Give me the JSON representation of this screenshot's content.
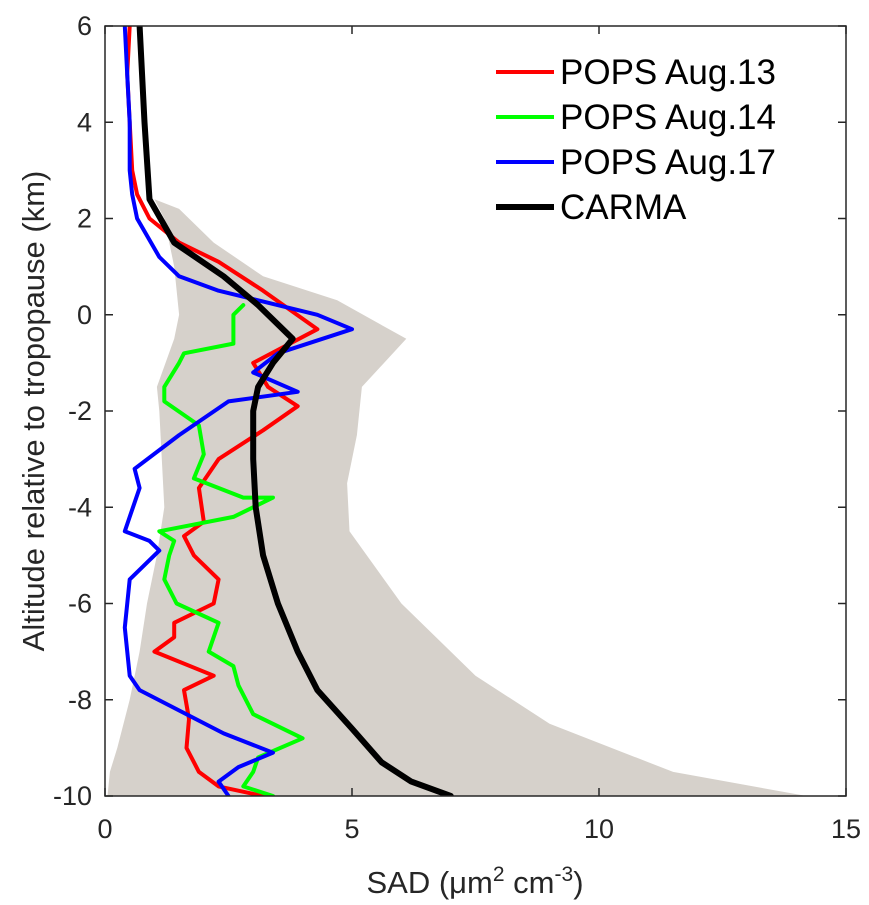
{
  "chart_data": {
    "type": "line",
    "xlabel": {
      "prefix": "SAD (",
      "mu": "μ",
      "unit1": "m",
      "sup1": "2",
      "unit2": " cm",
      "sup2": "-3",
      "suffix": ")"
    },
    "ylabel": "Altitude relative to tropopause (km)",
    "xlim": [
      0,
      15
    ],
    "ylim": [
      -10,
      6
    ],
    "xticks": [
      "0",
      "5",
      "10",
      "15"
    ],
    "yticks": [
      "-10",
      "-8",
      "-6",
      "-4",
      "-2",
      "0",
      "2",
      "4",
      "6"
    ],
    "legend_position": "top-right",
    "range_band": {
      "color": "#d6d1cb",
      "low": [
        [
          0.05,
          -10
        ],
        [
          0.1,
          -9.5
        ],
        [
          0.25,
          -9
        ],
        [
          0.5,
          -8
        ],
        [
          0.7,
          -7
        ],
        [
          0.85,
          -6
        ],
        [
          1.05,
          -5
        ],
        [
          1.2,
          -4
        ],
        [
          1.15,
          -3
        ],
        [
          1.1,
          -2
        ],
        [
          1.05,
          -1.5
        ],
        [
          1.4,
          -0.5
        ],
        [
          1.5,
          0
        ],
        [
          1.4,
          1
        ],
        [
          1.2,
          2
        ],
        [
          1.0,
          2.4
        ]
      ],
      "high": [
        [
          1.0,
          2.4
        ],
        [
          1.5,
          2.2
        ],
        [
          2.2,
          1.5
        ],
        [
          3.2,
          0.8
        ],
        [
          4.7,
          0.3
        ],
        [
          6.1,
          -0.5
        ],
        [
          5.2,
          -1.5
        ],
        [
          5.1,
          -2.5
        ],
        [
          4.9,
          -3.5
        ],
        [
          4.95,
          -4.5
        ],
        [
          6.0,
          -6
        ],
        [
          7.5,
          -7.5
        ],
        [
          9.0,
          -8.5
        ],
        [
          11.5,
          -9.5
        ],
        [
          14.2,
          -10
        ]
      ]
    },
    "series": [
      {
        "name": "POPS Aug.13",
        "color": "#ff0000",
        "points": [
          [
            0.5,
            6
          ],
          [
            0.45,
            5
          ],
          [
            0.5,
            4
          ],
          [
            0.55,
            3
          ],
          [
            0.65,
            2.5
          ],
          [
            0.9,
            2
          ],
          [
            1.5,
            1.5
          ],
          [
            2.3,
            1.1
          ],
          [
            3.2,
            0.5
          ],
          [
            4.3,
            -0.3
          ],
          [
            3.0,
            -1.0
          ],
          [
            3.3,
            -1.5
          ],
          [
            3.9,
            -1.9
          ],
          [
            3.2,
            -2.4
          ],
          [
            2.3,
            -3.0
          ],
          [
            1.9,
            -3.6
          ],
          [
            2.0,
            -4.3
          ],
          [
            1.6,
            -4.6
          ],
          [
            1.8,
            -5.0
          ],
          [
            2.3,
            -5.5
          ],
          [
            2.2,
            -6.0
          ],
          [
            1.4,
            -6.4
          ],
          [
            1.4,
            -6.7
          ],
          [
            1.0,
            -7.0
          ],
          [
            2.2,
            -7.5
          ],
          [
            1.6,
            -7.8
          ],
          [
            1.7,
            -8.4
          ],
          [
            1.65,
            -9.0
          ],
          [
            1.9,
            -9.5
          ],
          [
            2.3,
            -9.8
          ],
          [
            3.2,
            -10.0
          ]
        ]
      },
      {
        "name": "POPS Aug.14",
        "color": "#00ff00",
        "points": [
          [
            2.8,
            0.2
          ],
          [
            2.6,
            0
          ],
          [
            2.6,
            -0.6
          ],
          [
            1.6,
            -0.8
          ],
          [
            1.5,
            -1.0
          ],
          [
            1.2,
            -1.5
          ],
          [
            1.2,
            -1.8
          ],
          [
            1.9,
            -2.3
          ],
          [
            2.0,
            -2.9
          ],
          [
            1.8,
            -3.4
          ],
          [
            2.8,
            -3.8
          ],
          [
            3.4,
            -3.8
          ],
          [
            2.6,
            -4.2
          ],
          [
            1.1,
            -4.5
          ],
          [
            1.4,
            -4.7
          ],
          [
            1.3,
            -5.0
          ],
          [
            1.2,
            -5.5
          ],
          [
            1.45,
            -6.0
          ],
          [
            2.3,
            -6.4
          ],
          [
            2.1,
            -7.0
          ],
          [
            2.6,
            -7.3
          ],
          [
            2.7,
            -7.7
          ],
          [
            3.0,
            -8.3
          ],
          [
            4.0,
            -8.8
          ],
          [
            3.1,
            -9.2
          ],
          [
            3.0,
            -9.5
          ],
          [
            2.8,
            -9.8
          ],
          [
            3.4,
            -10.0
          ]
        ]
      },
      {
        "name": "POPS Aug.17",
        "color": "#0000ff",
        "points": [
          [
            0.4,
            6
          ],
          [
            0.45,
            5
          ],
          [
            0.5,
            4
          ],
          [
            0.5,
            3
          ],
          [
            0.55,
            2.5
          ],
          [
            0.65,
            2
          ],
          [
            1.1,
            1.2
          ],
          [
            1.5,
            0.8
          ],
          [
            2.3,
            0.5
          ],
          [
            3.1,
            0.3
          ],
          [
            4.3,
            0
          ],
          [
            5.0,
            -0.3
          ],
          [
            3.5,
            -0.8
          ],
          [
            3.0,
            -1.2
          ],
          [
            3.9,
            -1.6
          ],
          [
            2.5,
            -1.8
          ],
          [
            1.5,
            -2.5
          ],
          [
            0.6,
            -3.2
          ],
          [
            0.7,
            -3.6
          ],
          [
            0.5,
            -4.2
          ],
          [
            0.4,
            -4.5
          ],
          [
            0.9,
            -4.7
          ],
          [
            1.1,
            -4.9
          ],
          [
            0.5,
            -5.5
          ],
          [
            0.4,
            -6.5
          ],
          [
            0.5,
            -7.5
          ],
          [
            0.7,
            -7.8
          ],
          [
            2.4,
            -8.7
          ],
          [
            3.4,
            -9.1
          ],
          [
            2.7,
            -9.4
          ],
          [
            2.3,
            -9.7
          ],
          [
            2.5,
            -10
          ]
        ]
      },
      {
        "name": "CARMA",
        "color": "#000000",
        "points": [
          [
            0.7,
            6
          ],
          [
            0.8,
            4
          ],
          [
            0.9,
            2.4
          ],
          [
            1.4,
            1.5
          ],
          [
            2.4,
            0.8
          ],
          [
            3.1,
            0.2
          ],
          [
            3.8,
            -0.5
          ],
          [
            3.4,
            -1.0
          ],
          [
            3.1,
            -1.5
          ],
          [
            3.0,
            -2
          ],
          [
            3.0,
            -3
          ],
          [
            3.05,
            -4
          ],
          [
            3.2,
            -5
          ],
          [
            3.5,
            -6
          ],
          [
            3.9,
            -7
          ],
          [
            4.3,
            -7.8
          ],
          [
            5.0,
            -8.6
          ],
          [
            5.6,
            -9.3
          ],
          [
            6.2,
            -9.7
          ],
          [
            7.0,
            -10
          ]
        ]
      }
    ]
  }
}
